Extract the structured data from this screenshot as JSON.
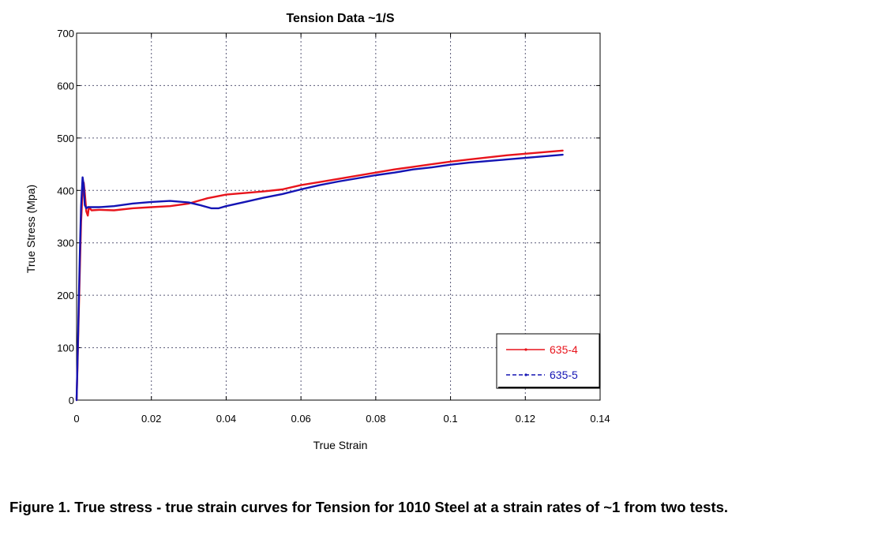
{
  "chart_data": {
    "type": "line",
    "title": "Tension Data ~1/S",
    "xlabel": "True Strain",
    "ylabel": "True Stress (Mpa)",
    "xlim": [
      0,
      0.14
    ],
    "ylim": [
      0,
      700
    ],
    "x_ticks": [
      "0",
      "0.02",
      "0.04",
      "0.06",
      "0.08",
      "0.1",
      "0.12",
      "0.14"
    ],
    "y_ticks": [
      "0",
      "100",
      "200",
      "300",
      "400",
      "500",
      "600",
      "700"
    ],
    "grid": true,
    "legend_position": "bottom-right",
    "series": [
      {
        "name": "635-4",
        "color": "#e8141c",
        "points": [
          [
            0,
            0
          ],
          [
            0.0003,
            80
          ],
          [
            0.0006,
            170
          ],
          [
            0.0009,
            260
          ],
          [
            0.0012,
            340
          ],
          [
            0.0016,
            400
          ],
          [
            0.0019,
            415
          ],
          [
            0.0022,
            395
          ],
          [
            0.0026,
            360
          ],
          [
            0.003,
            352
          ],
          [
            0.0033,
            368
          ],
          [
            0.004,
            362
          ],
          [
            0.006,
            363
          ],
          [
            0.01,
            362
          ],
          [
            0.015,
            366
          ],
          [
            0.02,
            368
          ],
          [
            0.025,
            370
          ],
          [
            0.03,
            375
          ],
          [
            0.035,
            385
          ],
          [
            0.04,
            392
          ],
          [
            0.045,
            395
          ],
          [
            0.05,
            398
          ],
          [
            0.055,
            402
          ],
          [
            0.06,
            410
          ],
          [
            0.065,
            416
          ],
          [
            0.07,
            422
          ],
          [
            0.075,
            428
          ],
          [
            0.08,
            434
          ],
          [
            0.085,
            440
          ],
          [
            0.09,
            445
          ],
          [
            0.095,
            450
          ],
          [
            0.1,
            455
          ],
          [
            0.105,
            459
          ],
          [
            0.11,
            463
          ],
          [
            0.115,
            467
          ],
          [
            0.12,
            470
          ],
          [
            0.125,
            473
          ],
          [
            0.13,
            476
          ]
        ]
      },
      {
        "name": "635-5",
        "color": "#1414b4",
        "points": [
          [
            0,
            0
          ],
          [
            0.0003,
            90
          ],
          [
            0.0006,
            190
          ],
          [
            0.0009,
            290
          ],
          [
            0.0012,
            370
          ],
          [
            0.0016,
            425
          ],
          [
            0.0019,
            410
          ],
          [
            0.0022,
            372
          ],
          [
            0.0026,
            366
          ],
          [
            0.003,
            368
          ],
          [
            0.006,
            368
          ],
          [
            0.01,
            370
          ],
          [
            0.015,
            375
          ],
          [
            0.02,
            378
          ],
          [
            0.025,
            380
          ],
          [
            0.03,
            377
          ],
          [
            0.033,
            372
          ],
          [
            0.036,
            366
          ],
          [
            0.038,
            366
          ],
          [
            0.04,
            370
          ],
          [
            0.045,
            378
          ],
          [
            0.05,
            386
          ],
          [
            0.055,
            393
          ],
          [
            0.06,
            402
          ],
          [
            0.065,
            410
          ],
          [
            0.07,
            417
          ],
          [
            0.075,
            423
          ],
          [
            0.08,
            429
          ],
          [
            0.085,
            434
          ],
          [
            0.09,
            440
          ],
          [
            0.095,
            444
          ],
          [
            0.1,
            449
          ],
          [
            0.105,
            453
          ],
          [
            0.11,
            456
          ],
          [
            0.115,
            459
          ],
          [
            0.12,
            462
          ],
          [
            0.125,
            465
          ],
          [
            0.13,
            468
          ]
        ]
      }
    ]
  },
  "caption": "Figure 1. True stress - true strain curves for Tension for 1010 Steel at a strain rates of ~1 from two tests."
}
